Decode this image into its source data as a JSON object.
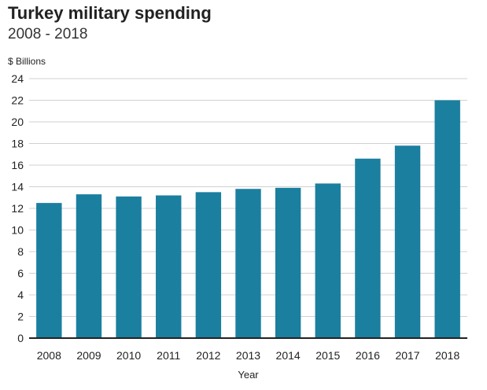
{
  "chart_data": {
    "type": "bar",
    "title": "Turkey military spending",
    "subtitle": "2008 - 2018",
    "ylabel": "$ Billions",
    "xlabel": "Year",
    "categories": [
      "2008",
      "2009",
      "2010",
      "2011",
      "2012",
      "2013",
      "2014",
      "2015",
      "2016",
      "2017",
      "2018"
    ],
    "values": [
      12.5,
      13.3,
      13.1,
      13.2,
      13.5,
      13.8,
      13.9,
      14.3,
      16.6,
      17.8,
      22.0
    ],
    "ylim": [
      0,
      24
    ],
    "yticks": [
      0,
      2,
      4,
      6,
      8,
      10,
      12,
      14,
      16,
      18,
      20,
      22,
      24
    ],
    "grid": true,
    "legend": "none",
    "bar_color": "#1b7fa0"
  }
}
